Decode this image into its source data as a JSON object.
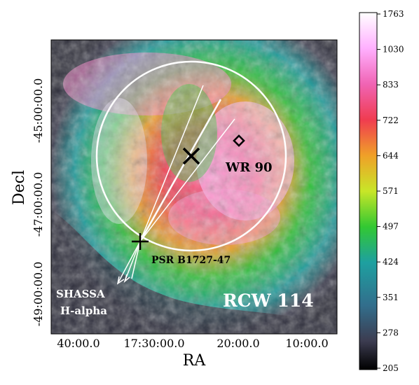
{
  "image": {
    "axes": {
      "xlabel": "RA",
      "ylabel": "Decl",
      "xticks": [
        "40:00.0",
        "17:30:00.0",
        "20:00.0",
        "10:00.0"
      ],
      "yticks": [
        "-45:00:00.0",
        "-47:00:00.0",
        "-49:00:00.0"
      ]
    },
    "annotations": {
      "star_label": "WR 90",
      "pulsar_label": "PSR B1727-47",
      "survey_line1": "SHASSA",
      "survey_line2": "H-alpha",
      "object_label": "RCW 114"
    },
    "colorbar": {
      "ticks": [
        "1763",
        "1030",
        "833",
        "722",
        "644",
        "571",
        "497",
        "424",
        "351",
        "278",
        "205"
      ],
      "colors": [
        "#ffffff",
        "#ffb0ff",
        "#f064b4",
        "#f03c50",
        "#f0a028",
        "#c8e628",
        "#32c832",
        "#1ea0a0",
        "#326e8c",
        "#3c3c50",
        "#000000"
      ]
    }
  }
}
